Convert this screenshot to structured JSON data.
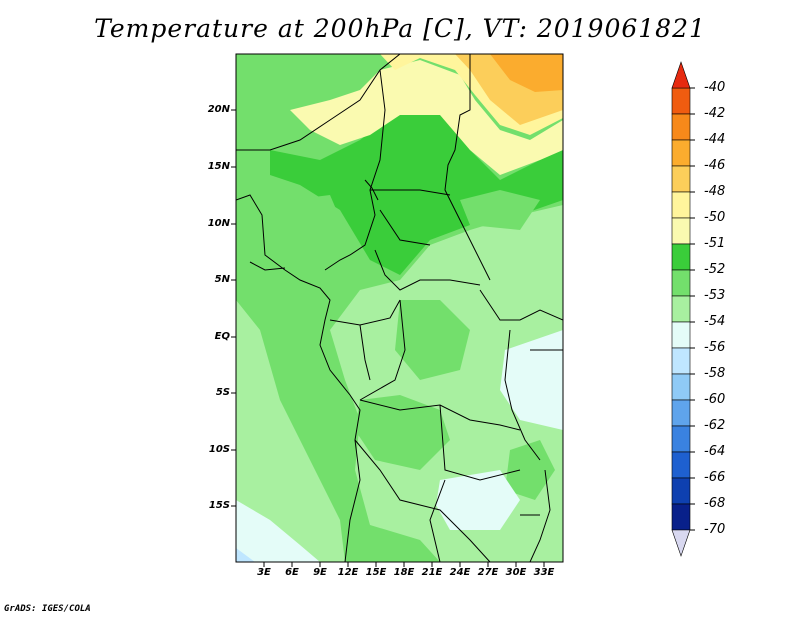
{
  "title": "Temperature at 200hPa [C], VT: 2019061821",
  "y_ticks": [
    "20N",
    "15N",
    "10N",
    "5N",
    "EQ",
    "5S",
    "10S",
    "15S"
  ],
  "x_ticks": [
    "3E",
    "6E",
    "9E",
    "12E",
    "15E",
    "18E",
    "21E",
    "24E",
    "27E",
    "30E",
    "33E"
  ],
  "colorbar": {
    "labels": [
      "-40",
      "-42",
      "-44",
      "-46",
      "-48",
      "-50",
      "-51",
      "-52",
      "-53",
      "-54",
      "-56",
      "-58",
      "-60",
      "-62",
      "-64",
      "-66",
      "-68",
      "-70"
    ],
    "colors": [
      "#e62a10",
      "#f05c10",
      "#f7891a",
      "#fbac2e",
      "#fcce5a",
      "#fff59c",
      "#fafab0",
      "#3acd3a",
      "#73df6c",
      "#a8f0a0",
      "#e4fcf8",
      "#bfe6ff",
      "#8fcaf6",
      "#5fa4ec",
      "#3a82e0",
      "#1e60d0",
      "#0e40b0",
      "#08208a",
      "#0a1468"
    ]
  },
  "credit": "GrADS: IGES/COLA"
}
